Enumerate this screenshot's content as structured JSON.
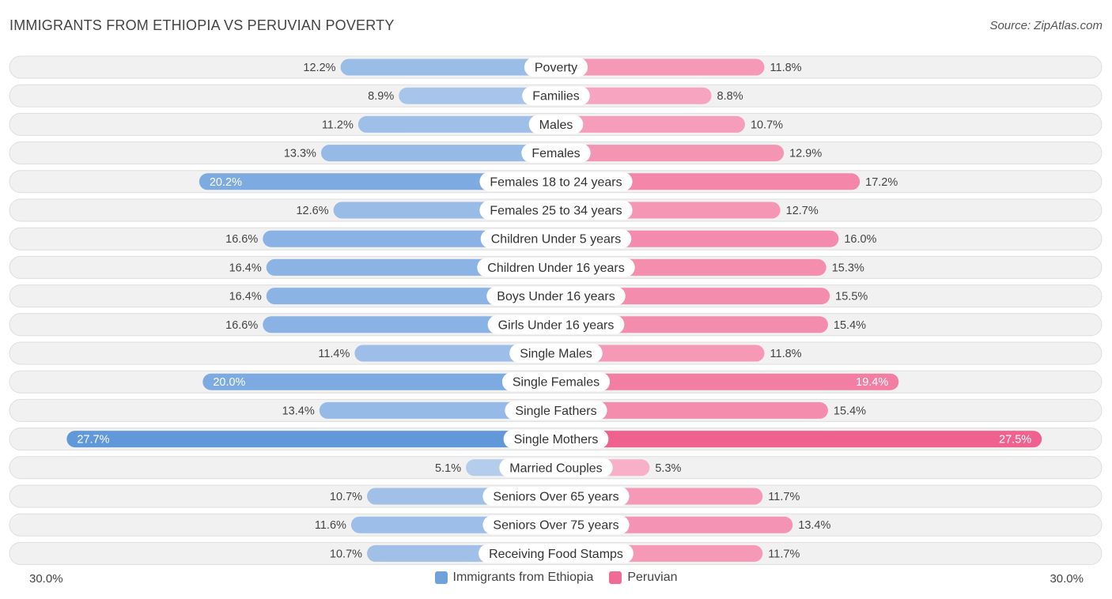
{
  "header": {
    "title": "IMMIGRANTS FROM ETHIOPIA VS PERUVIAN POVERTY",
    "source": "Source: ZipAtlas.com"
  },
  "axis": {
    "left_label": "30.0%",
    "right_label": "30.0%"
  },
  "legend": {
    "left": {
      "label": "Immigrants from Ethiopia",
      "color": "#6fa1dc"
    },
    "right": {
      "label": "Peruvian",
      "color": "#f06b96"
    }
  },
  "chart_data": {
    "type": "bar",
    "orientation": "horizontal-diverging",
    "title": "IMMIGRANTS FROM ETHIOPIA VS PERUVIAN POVERTY",
    "xlim": [
      0,
      30
    ],
    "unit": "%",
    "categories": [
      "Poverty",
      "Families",
      "Males",
      "Females",
      "Females 18 to 24 years",
      "Females 25 to 34 years",
      "Children Under 5 years",
      "Children Under 16 years",
      "Boys Under 16 years",
      "Girls Under 16 years",
      "Single Males",
      "Single Females",
      "Single Fathers",
      "Single Mothers",
      "Married Couples",
      "Seniors Over 65 years",
      "Seniors Over 75 years",
      "Receiving Food Stamps"
    ],
    "series": [
      {
        "name": "Immigrants from Ethiopia",
        "values": [
          12.2,
          8.9,
          11.2,
          13.3,
          20.2,
          12.6,
          16.6,
          16.4,
          16.4,
          16.6,
          11.4,
          20.0,
          13.4,
          27.7,
          5.1,
          10.7,
          11.6,
          10.7
        ],
        "labels": [
          "12.2%",
          "8.9%",
          "11.2%",
          "13.3%",
          "20.2%",
          "12.6%",
          "16.6%",
          "16.4%",
          "16.4%",
          "16.6%",
          "11.4%",
          "20.0%",
          "13.4%",
          "27.7%",
          "5.1%",
          "10.7%",
          "11.6%",
          "10.7%"
        ]
      },
      {
        "name": "Peruvian",
        "values": [
          11.8,
          8.8,
          10.7,
          12.9,
          17.2,
          12.7,
          16.0,
          15.3,
          15.5,
          15.4,
          11.8,
          19.4,
          15.4,
          27.5,
          5.3,
          11.7,
          13.4,
          11.7
        ],
        "labels": [
          "11.8%",
          "8.8%",
          "10.7%",
          "12.9%",
          "17.2%",
          "12.7%",
          "16.0%",
          "15.3%",
          "15.5%",
          "15.4%",
          "11.8%",
          "19.4%",
          "15.4%",
          "27.5%",
          "5.3%",
          "11.7%",
          "13.4%",
          "11.7%"
        ]
      }
    ]
  }
}
